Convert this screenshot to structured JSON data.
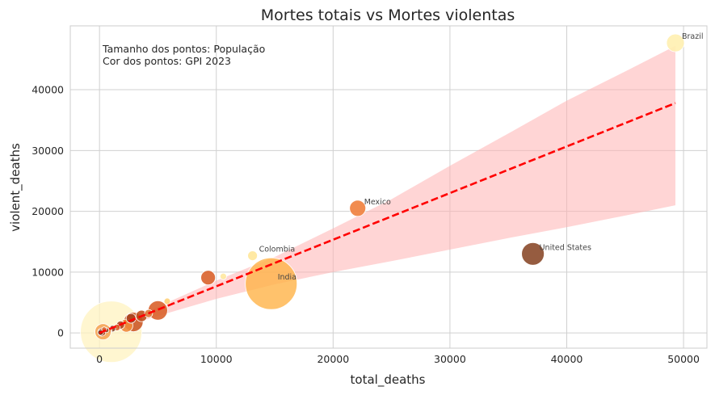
{
  "chart_data": {
    "type": "scatter",
    "title": "Mortes totais vs Mortes violentas",
    "xlabel": "total_deaths",
    "ylabel": "violent_deaths",
    "xlim": [
      -2500,
      52000
    ],
    "ylim": [
      -2500,
      50500
    ],
    "xticks": [
      0,
      10000,
      20000,
      30000,
      40000,
      50000
    ],
    "yticks": [
      0,
      10000,
      20000,
      30000,
      40000
    ],
    "grid": true,
    "annotations": [
      "Tamanho dos pontos: População",
      "Cor dos pontos: GPI 2023"
    ],
    "points": [
      {
        "x": 1000,
        "y": 200,
        "size": 38,
        "color": "#fff3c0",
        "alpha": 0.75
      },
      {
        "x": 14700,
        "y": 8100,
        "size": 32,
        "color": "#ffb347",
        "alpha": 0.8,
        "label": "India"
      },
      {
        "x": 49300,
        "y": 47700,
        "size": 11,
        "color": "#fff0b0",
        "alpha": 0.9,
        "label": "Brazil"
      },
      {
        "x": 22100,
        "y": 20500,
        "size": 10,
        "color": "#f0803c",
        "alpha": 0.9,
        "label": "Mexico"
      },
      {
        "x": 37100,
        "y": 13000,
        "size": 14,
        "color": "#8b4a2b",
        "alpha": 0.9,
        "label": "United States"
      },
      {
        "x": 13100,
        "y": 12700,
        "size": 6,
        "color": "#ffe79a",
        "alpha": 0.9,
        "label": "Colombia"
      },
      {
        "x": 9300,
        "y": 9100,
        "size": 9,
        "color": "#d9622b",
        "alpha": 0.9
      },
      {
        "x": 10600,
        "y": 9300,
        "size": 4,
        "color": "#ffe8a0",
        "alpha": 0.9
      },
      {
        "x": 5000,
        "y": 3700,
        "size": 12,
        "color": "#d9622b",
        "alpha": 0.9
      },
      {
        "x": 5800,
        "y": 5200,
        "size": 4,
        "color": "#ffd27a",
        "alpha": 0.9
      },
      {
        "x": 2900,
        "y": 1800,
        "size": 12,
        "color": "#cc5a28",
        "alpha": 0.9
      },
      {
        "x": 2300,
        "y": 1200,
        "size": 8,
        "color": "#f08a3a",
        "alpha": 0.9
      },
      {
        "x": 3600,
        "y": 2800,
        "size": 7,
        "color": "#c05020",
        "alpha": 0.9
      },
      {
        "x": 2700,
        "y": 2400,
        "size": 6,
        "color": "#a8431e",
        "alpha": 0.9
      },
      {
        "x": 4200,
        "y": 3200,
        "size": 5,
        "color": "#e07a3a",
        "alpha": 0.9
      },
      {
        "x": 1800,
        "y": 1300,
        "size": 5,
        "color": "#b04a22",
        "alpha": 0.9
      },
      {
        "x": 1500,
        "y": 900,
        "size": 4,
        "color": "#d9622b",
        "alpha": 0.9
      },
      {
        "x": 1100,
        "y": 700,
        "size": 4,
        "color": "#8b4a2b",
        "alpha": 0.9
      },
      {
        "x": 800,
        "y": 500,
        "size": 4,
        "color": "#c05020",
        "alpha": 0.9
      },
      {
        "x": 500,
        "y": 300,
        "size": 4,
        "color": "#f0803c",
        "alpha": 0.9
      },
      {
        "x": 300,
        "y": 200,
        "size": 10,
        "color": "#f5a050",
        "alpha": 0.85
      },
      {
        "x": 200,
        "y": 150,
        "size": 5,
        "color": "#a8431e",
        "alpha": 0.9
      },
      {
        "x": 100,
        "y": 80,
        "size": 3.5,
        "color": "#7a3a20",
        "alpha": 0.9
      },
      {
        "x": 600,
        "y": 450,
        "size": 3,
        "color": "#8b4a2b",
        "alpha": 0.9
      },
      {
        "x": 400,
        "y": 600,
        "size": 3,
        "color": "#d9622b",
        "alpha": 0.9
      }
    ],
    "regression": {
      "x": [
        0,
        49300
      ],
      "y": [
        0,
        37800
      ],
      "color": "#ff0000",
      "style": "dashed"
    },
    "confidence_band": {
      "x": [
        300,
        5000,
        10000,
        15000,
        20000,
        25000,
        30000,
        35000,
        40000,
        45000,
        49300
      ],
      "lower": [
        0,
        2800,
        5600,
        8000,
        10000,
        11800,
        13700,
        15600,
        17400,
        19300,
        21000
      ],
      "upper": [
        600,
        4300,
        8600,
        12500,
        17200,
        22000,
        27500,
        32800,
        38200,
        43000,
        47200
      ],
      "color": "#ffb3b3"
    }
  }
}
